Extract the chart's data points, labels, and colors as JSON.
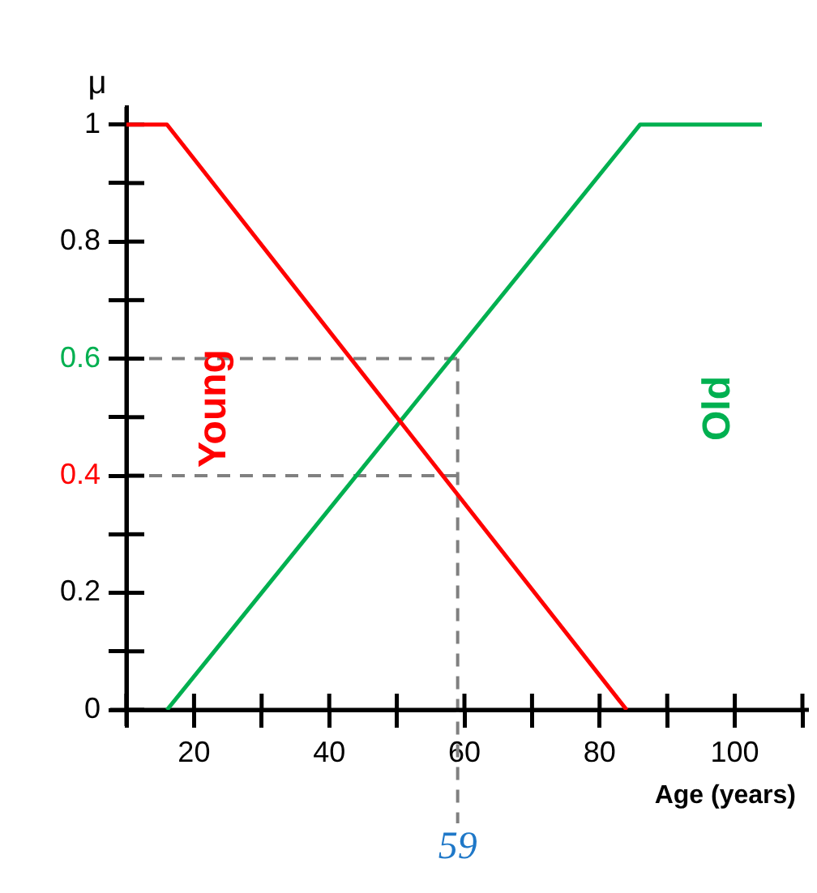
{
  "chart_data": {
    "type": "line",
    "xlabel": "Age (years)",
    "ylabel": "μ",
    "xlim": [
      10,
      110
    ],
    "ylim": [
      0,
      1.03
    ],
    "xticks": [
      {
        "value": 10,
        "label": null
      },
      20,
      {
        "value": 30,
        "label": null
      },
      40,
      {
        "value": 50,
        "label": null
      },
      60,
      {
        "value": 70,
        "label": null
      },
      80,
      {
        "value": 90,
        "label": null
      },
      100,
      {
        "value": 110,
        "label": null
      }
    ],
    "yticks": [
      0,
      {
        "value": 0.1,
        "label": null
      },
      0.2,
      {
        "value": 0.3,
        "label": null
      },
      0.4,
      {
        "value": 0.5,
        "label": null
      },
      0.6,
      {
        "value": 0.7,
        "label": null
      },
      0.8,
      {
        "value": 0.9,
        "label": null
      },
      1
    ],
    "series": [
      {
        "name": "Young",
        "color": "#ff0000",
        "x": [
          10,
          16,
          84
        ],
        "values": [
          1,
          1,
          0
        ]
      },
      {
        "name": "Old",
        "color": "#00b050",
        "x": [
          16,
          86,
          104
        ],
        "values": [
          0,
          1,
          1
        ]
      }
    ],
    "ref_lines": [
      {
        "axis": "x",
        "value": 59,
        "label": "59",
        "color": "#808080",
        "line_style": "dashed"
      },
      {
        "axis": "y",
        "value": 0.6,
        "color": "#808080",
        "line_style": "dashed"
      },
      {
        "axis": "y",
        "value": 0.4,
        "color": "#808080",
        "line_style": "dashed"
      }
    ],
    "grid": false,
    "legend": false,
    "marker": "none",
    "line_style": "solid"
  }
}
